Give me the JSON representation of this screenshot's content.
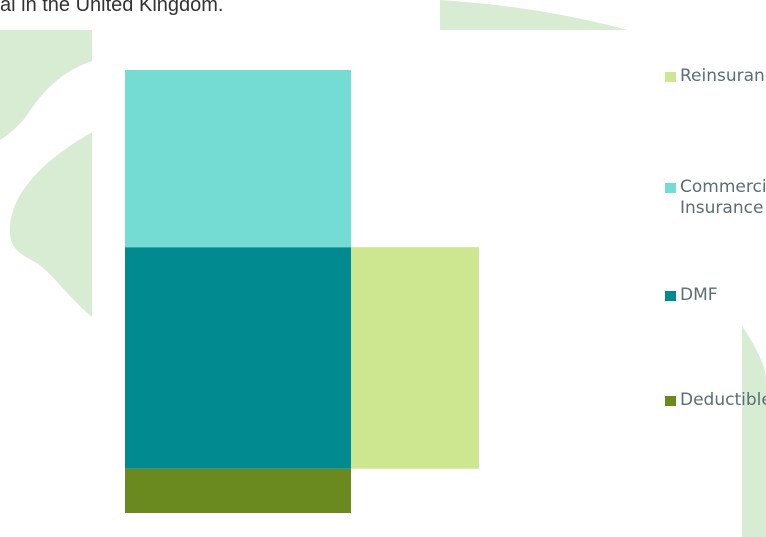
{
  "page_text": "al in the United Kingdom.",
  "colors": {
    "background_leaf": "#d7ecd2",
    "reinsurance": "#cce78f",
    "commercial_insurance": "#74dcd2",
    "dmf": "#018a8f",
    "deductible": "#6a8a1f"
  },
  "chart_data": {
    "type": "bar",
    "stacked": true,
    "categories": [
      "",
      ""
    ],
    "series": [
      {
        "name": "Deductible",
        "color": "#6a8a1f",
        "values": [
          1,
          0
        ]
      },
      {
        "name": "DMF",
        "color": "#018a8f",
        "values": [
          5,
          0
        ]
      },
      {
        "name": "Commercial Insurance",
        "color": "#74dcd2",
        "values": [
          4,
          0
        ]
      },
      {
        "name": "Reinsurance",
        "color": "#cce78f",
        "values": [
          0,
          5
        ]
      }
    ],
    "bar_starts": [
      0,
      1
    ],
    "ylim": [
      0,
      10
    ],
    "grid": false,
    "legend_position": "right",
    "legend": [
      {
        "label": "Reinsurance",
        "color": "#cce78f"
      },
      {
        "label": "Commercial\nInsurance",
        "color": "#74dcd2"
      },
      {
        "label": "DMF",
        "color": "#018a8f"
      },
      {
        "label": "Deductible",
        "color": "#6a8a1f"
      }
    ]
  }
}
